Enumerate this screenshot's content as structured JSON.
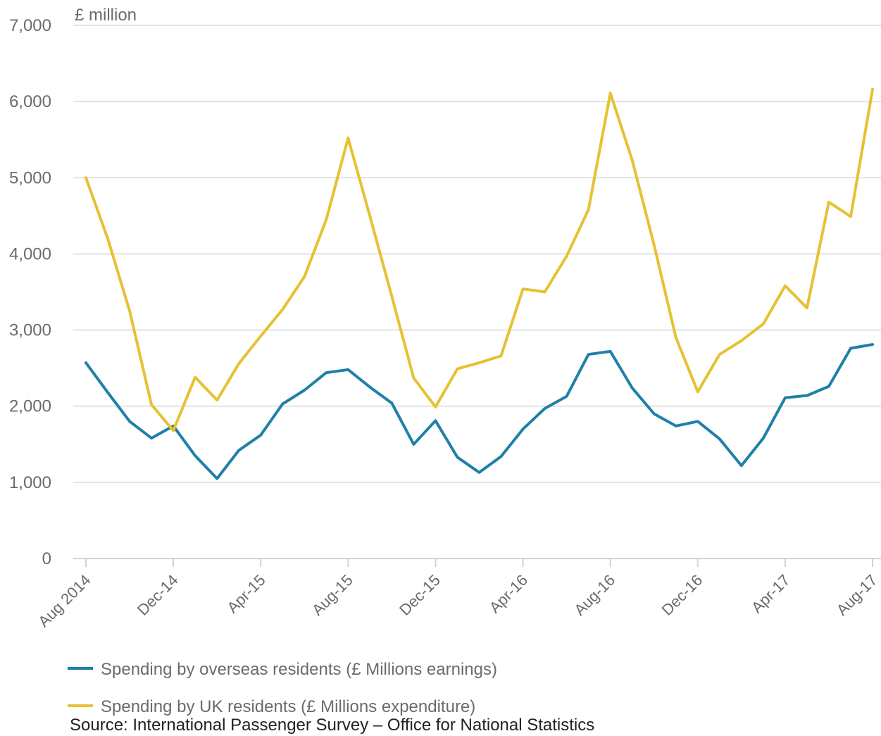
{
  "chart_data": {
    "type": "line",
    "y_unit_label": "£ million",
    "ylim": [
      0,
      7000
    ],
    "y_ticks": [
      0,
      1000,
      2000,
      3000,
      4000,
      5000,
      6000,
      7000
    ],
    "y_tick_labels": [
      "0",
      "1,000",
      "2,000",
      "3,000",
      "4,000",
      "5,000",
      "6,000",
      "7,000"
    ],
    "x": [
      "Aug 2014",
      "Sep-14",
      "Oct-14",
      "Nov-14",
      "Dec-14",
      "Jan-15",
      "Feb-15",
      "Mar-15",
      "Apr-15",
      "May-15",
      "Jun-15",
      "Jul-15",
      "Aug-15",
      "Sep-15",
      "Oct-15",
      "Nov-15",
      "Dec-15",
      "Jan-16",
      "Feb-16",
      "Mar-16",
      "Apr-16",
      "May-16",
      "Jun-16",
      "Jul-16",
      "Aug-16",
      "Sep-16",
      "Oct-16",
      "Nov-16",
      "Dec-16",
      "Jan-17",
      "Feb-17",
      "Mar-17",
      "Apr-17",
      "May-17",
      "Jun-17",
      "Jul-17",
      "Aug-17"
    ],
    "x_tick_indices": [
      0,
      4,
      8,
      12,
      16,
      20,
      24,
      28,
      32,
      36
    ],
    "x_tick_labels": [
      "Aug 2014",
      "Dec-14",
      "Apr-15",
      "Aug-15",
      "Dec-15",
      "Apr-16",
      "Aug-16",
      "Dec-16",
      "Apr-17",
      "Aug-17"
    ],
    "series": [
      {
        "name": "Spending by overseas residents (£ Millions earnings)",
        "color": "#1f80a8",
        "values": [
          2570,
          2180,
          1800,
          1580,
          1740,
          1350,
          1050,
          1420,
          1620,
          2030,
          2210,
          2440,
          2480,
          2250,
          2040,
          1500,
          1810,
          1330,
          1130,
          1340,
          1700,
          1970,
          2130,
          2680,
          2720,
          2240,
          1900,
          1740,
          1800,
          1570,
          1220,
          1580,
          2110,
          2140,
          2260,
          2760,
          2810
        ]
      },
      {
        "name": "Spending by UK residents (£ Millions expenditure)",
        "color": "#e5c233",
        "values": [
          5000,
          4200,
          3250,
          2020,
          1680,
          2380,
          2080,
          2560,
          2920,
          3270,
          3700,
          4450,
          5520,
          4490,
          3440,
          2370,
          1990,
          2490,
          2570,
          2660,
          3540,
          3500,
          3970,
          4580,
          6110,
          5230,
          4120,
          2900,
          2190,
          2680,
          2860,
          3080,
          3580,
          3290,
          4680,
          4490,
          6160
        ]
      }
    ],
    "source": "Source: International Passenger Survey – Office for National Statistics",
    "grid": true,
    "legend_position": "bottom"
  }
}
